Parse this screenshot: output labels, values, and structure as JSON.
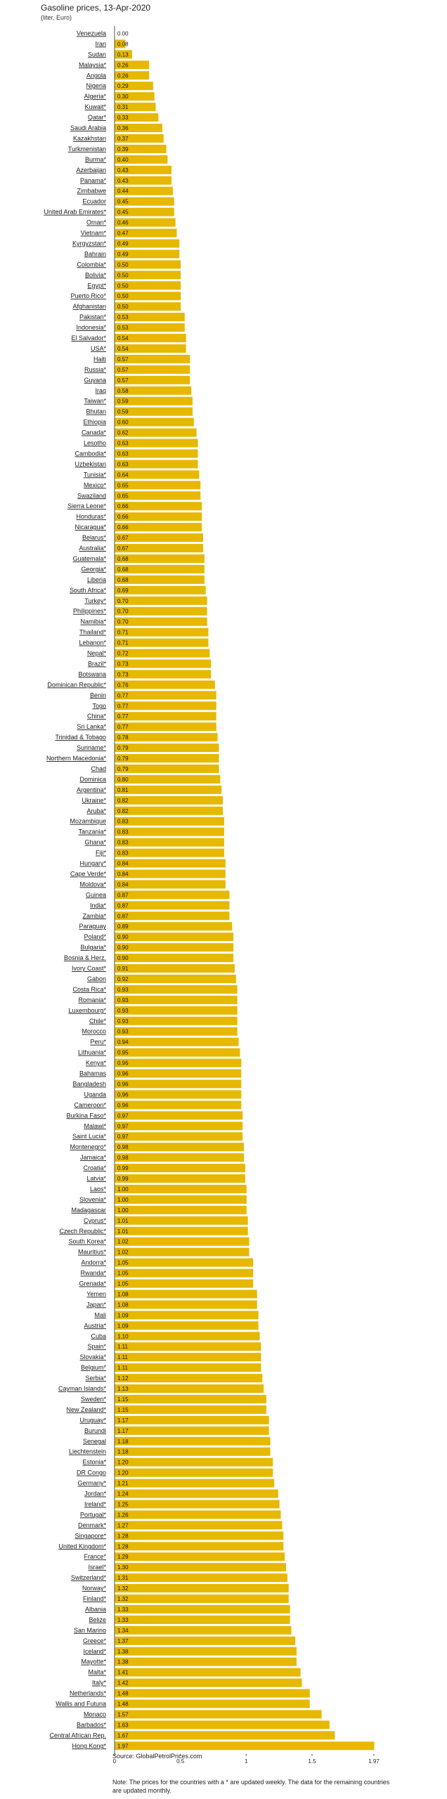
{
  "chart_data": {
    "type": "bar",
    "orientation": "horizontal",
    "title": "Gasoline prices, 13-Apr-2020",
    "subtitle": "(liter, Euro)",
    "source": "Source: GlobalPetrolPrices.com",
    "note": "Note: The prices for the countries with a * are updated weekly. The data for the remaining countries are updated monthly.",
    "bar_color": "#e6b800",
    "xlim": [
      0,
      1.97
    ],
    "x_ticks": [
      0,
      0.5,
      1,
      1.5,
      1.97
    ],
    "x_tick_labels": [
      "0",
      "0.5",
      "1",
      "1.5",
      "1.97"
    ],
    "categories": [
      "Venezuela",
      "Iran",
      "Sudan",
      "Malaysia*",
      "Angola",
      "Nigeria",
      "Algeria*",
      "Kuwait*",
      "Qatar*",
      "Saudi Arabia",
      "Kazakhstan",
      "Turkmenistan",
      "Burma*",
      "Azerbaijan",
      "Panama*",
      "Zimbabwe",
      "Ecuador",
      "United Arab Emirates*",
      "Oman*",
      "Vietnam*",
      "Kyrgyzstan*",
      "Bahrain",
      "Colombia*",
      "Bolivia*",
      "Egypt*",
      "Puerto Rico*",
      "Afghanistan",
      "Pakistan*",
      "Indonesia*",
      "El Salvador*",
      "USA*",
      "Haiti",
      "Russia*",
      "Guyana",
      "Iraq",
      "Taiwan*",
      "Bhutan",
      "Ethiopia",
      "Canada*",
      "Lesotho",
      "Cambodia*",
      "Uzbekistan",
      "Tunisia*",
      "Mexico*",
      "Swaziland",
      "Sierra Leone*",
      "Honduras*",
      "Nicaragua*",
      "Belarus*",
      "Australia*",
      "Guatemala*",
      "Georgia*",
      "Liberia",
      "South Africa*",
      "Turkey*",
      "Philippines*",
      "Namibia*",
      "Thailand*",
      "Lebanon*",
      "Nepal*",
      "Brazil*",
      "Botswana",
      "Dominican Republic*",
      "Benin",
      "Togo",
      "China*",
      "Sri Lanka*",
      "Trinidad & Tobago",
      "Suriname*",
      "Northern Macedonia*",
      "Chad",
      "Dominica",
      "Argentina*",
      "Ukraine*",
      "Aruba*",
      "Mozambique",
      "Tanzania*",
      "Ghana*",
      "Fiji*",
      "Hungary*",
      "Cape Verde*",
      "Moldova*",
      "Guinea",
      "India*",
      "Zambia*",
      "Paraguay",
      "Poland*",
      "Bulgaria*",
      "Bosnia & Herz.",
      "Ivory Coast*",
      "Gabon",
      "Costa Rica*",
      "Romania*",
      "Luxembourg*",
      "Chile*",
      "Morocco",
      "Peru*",
      "Lithuania*",
      "Kenya*",
      "Bahamas",
      "Bangladesh",
      "Uganda",
      "Cameroon*",
      "Burkina Faso*",
      "Malawi*",
      "Saint Lucia*",
      "Montenegro*",
      "Jamaica*",
      "Croatia*",
      "Latvia*",
      "Laos*",
      "Slovenia*",
      "Madagascar",
      "Cyprus*",
      "Czech Republic*",
      "South Korea*",
      "Mauritius*",
      "Andorra*",
      "Rwanda*",
      "Grenada*",
      "Yemen",
      "Japan*",
      "Mali",
      "Austria*",
      "Cuba",
      "Spain*",
      "Slovakia*",
      "Belgium*",
      "Serbia*",
      "Cayman Islands*",
      "Sweden*",
      "New Zealand*",
      "Uruguay*",
      "Burundi",
      "Senegal",
      "Liechtenstein",
      "Estonia*",
      "DR Congo",
      "Germany*",
      "Jordan*",
      "Ireland*",
      "Portugal*",
      "Denmark*",
      "Singapore*",
      "United Kingdom*",
      "France*",
      "Israel*",
      "Switzerland*",
      "Norway*",
      "Finland*",
      "Albania",
      "Belize",
      "San Marino",
      "Greece*",
      "Iceland*",
      "Mayotte*",
      "Malta*",
      "Italy*",
      "Netherlands*",
      "Wallis and Futuna",
      "Monaco",
      "Barbados*",
      "Central African Rep.",
      "Hong Kong*"
    ],
    "values": [
      0.0,
      0.08,
      0.13,
      0.26,
      0.26,
      0.29,
      0.3,
      0.31,
      0.33,
      0.36,
      0.37,
      0.39,
      0.4,
      0.43,
      0.43,
      0.44,
      0.45,
      0.45,
      0.46,
      0.47,
      0.49,
      0.49,
      0.5,
      0.5,
      0.5,
      0.5,
      0.5,
      0.53,
      0.53,
      0.54,
      0.54,
      0.57,
      0.57,
      0.57,
      0.58,
      0.59,
      0.59,
      0.6,
      0.62,
      0.63,
      0.63,
      0.63,
      0.64,
      0.65,
      0.65,
      0.66,
      0.66,
      0.66,
      0.67,
      0.67,
      0.68,
      0.68,
      0.68,
      0.69,
      0.7,
      0.7,
      0.7,
      0.71,
      0.71,
      0.72,
      0.73,
      0.73,
      0.76,
      0.77,
      0.77,
      0.77,
      0.77,
      0.78,
      0.79,
      0.79,
      0.79,
      0.8,
      0.81,
      0.82,
      0.82,
      0.83,
      0.83,
      0.83,
      0.83,
      0.84,
      0.84,
      0.84,
      0.87,
      0.87,
      0.87,
      0.89,
      0.9,
      0.9,
      0.9,
      0.91,
      0.92,
      0.93,
      0.93,
      0.93,
      0.93,
      0.93,
      0.94,
      0.95,
      0.96,
      0.96,
      0.96,
      0.96,
      0.96,
      0.97,
      0.97,
      0.97,
      0.98,
      0.98,
      0.99,
      0.99,
      1.0,
      1.0,
      1.0,
      1.01,
      1.01,
      1.02,
      1.02,
      1.05,
      1.05,
      1.05,
      1.08,
      1.08,
      1.09,
      1.09,
      1.1,
      1.11,
      1.11,
      1.11,
      1.12,
      1.13,
      1.15,
      1.15,
      1.17,
      1.17,
      1.18,
      1.18,
      1.2,
      1.2,
      1.21,
      1.24,
      1.25,
      1.26,
      1.27,
      1.28,
      1.28,
      1.29,
      1.3,
      1.31,
      1.32,
      1.32,
      1.33,
      1.33,
      1.34,
      1.37,
      1.38,
      1.38,
      1.41,
      1.42,
      1.48,
      1.48,
      1.57,
      1.63,
      1.67,
      1.97
    ],
    "value_labels": [
      "0.00",
      "0.08",
      "0.13",
      "0.26",
      "0.26",
      "0.29",
      "0.30",
      "0.31",
      "0.33",
      "0.36",
      "0.37",
      "0.39",
      "0.40",
      "0.43",
      "0.43",
      "0.44",
      "0.45",
      "0.45",
      "0.46",
      "0.47",
      "0.49",
      "0.49",
      "0.50",
      "0.50",
      "0.50",
      "0.50",
      "0.50",
      "0.53",
      "0.53",
      "0.54",
      "0.54",
      "0.57",
      "0.57",
      "0.57",
      "0.58",
      "0.59",
      "0.59",
      "0.60",
      "0.62",
      "0.63",
      "0.63",
      "0.63",
      "0.64",
      "0.65",
      "0.65",
      "0.66",
      "0.66",
      "0.66",
      "0.67",
      "0.67",
      "0.68",
      "0.68",
      "0.68",
      "0.69",
      "0.70",
      "0.70",
      "0.70",
      "0.71",
      "0.71",
      "0.72",
      "0.73",
      "0.73",
      "0.76",
      "0.77",
      "0.77",
      "0.77",
      "0.77",
      "0.78",
      "0.79",
      "0.79",
      "0.79",
      "0.80",
      "0.81",
      "0.82",
      "0.82",
      "0.83",
      "0.83",
      "0.83",
      "0.83",
      "0.84",
      "0.84",
      "0.84",
      "0.87",
      "0.87",
      "0.87",
      "0.89",
      "0.90",
      "0.90",
      "0.90",
      "0.91",
      "0.92",
      "0.93",
      "0.93",
      "0.93",
      "0.93",
      "0.93",
      "0.94",
      "0.95",
      "0.96",
      "0.96",
      "0.96",
      "0.96",
      "0.96",
      "0.97",
      "0.97",
      "0.97",
      "0.98",
      "0.98",
      "0.99",
      "0.99",
      "1.00",
      "1.00",
      "1.00",
      "1.01",
      "1.01",
      "1.02",
      "1.02",
      "1.05",
      "1.05",
      "1.05",
      "1.08",
      "1.08",
      "1.09",
      "1.09",
      "1.10",
      "1.11",
      "1.11",
      "1.11",
      "1.12",
      "1.13",
      "1.15",
      "1.15",
      "1.17",
      "1.17",
      "1.18",
      "1.18",
      "1.20",
      "1.20",
      "1.21",
      "1.24",
      "1.25",
      "1.26",
      "1.27",
      "1.28",
      "1.28",
      "1.29",
      "1.30",
      "1.31",
      "1.32",
      "1.32",
      "1.33",
      "1.33",
      "1.34",
      "1.37",
      "1.38",
      "1.38",
      "1.41",
      "1.42",
      "1.48",
      "1.48",
      "1.57",
      "1.63",
      "1.67",
      "1.97"
    ]
  }
}
